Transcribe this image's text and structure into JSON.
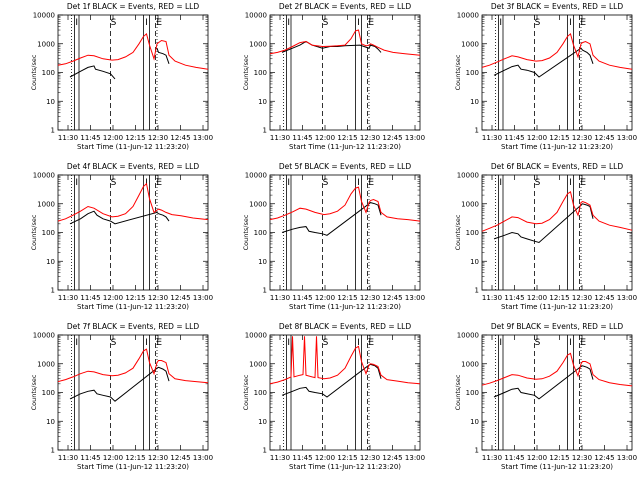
{
  "figure": {
    "xlabel": "Start Time (11-Jun-12 11:23:20)",
    "ylabel": "Counts/sec",
    "legend_text": "BLACK = Events, RED = LLD",
    "marker_labels": [
      "I",
      "S",
      "I",
      "E"
    ]
  },
  "chart_data": [
    {
      "type": "line",
      "title": "Det 1f BLACK = Events, RED = LLD",
      "xlabel": "Start Time (11-Jun-12 11:23:20)",
      "ylabel": "Counts/sec",
      "xticks": [
        "11:30",
        "11:45",
        "12:00",
        "12:15",
        "12:30",
        "12:45",
        "13:00"
      ],
      "yticks": [
        "1",
        "10",
        "100",
        "1000",
        "10000"
      ],
      "yscale": "log",
      "ylim": [
        1,
        10000
      ],
      "xlim_minutes": [
        0,
        100
      ],
      "series": [
        {
          "name": "Events",
          "color": "#000000",
          "x": [
            8,
            15,
            20,
            24,
            25,
            30,
            35,
            38,
            52,
            56,
            60,
            62,
            64,
            66,
            67,
            70,
            72,
            74
          ],
          "y": [
            70,
            110,
            150,
            170,
            130,
            110,
            90,
            60,
            null,
            null,
            null,
            null,
            null,
            700,
            500,
            450,
            400,
            200
          ]
        },
        {
          "name": "LLD",
          "color": "#ff0000",
          "x": [
            0,
            5,
            10,
            15,
            20,
            24,
            30,
            36,
            40,
            45,
            50,
            54,
            57,
            59,
            61,
            64,
            66,
            67,
            69,
            72,
            74,
            78,
            85,
            92,
            100
          ],
          "y": [
            180,
            200,
            250,
            320,
            400,
            380,
            300,
            270,
            280,
            350,
            500,
            1000,
            1800,
            2200,
            900,
            300,
            1000,
            1100,
            1300,
            1200,
            400,
            250,
            180,
            150,
            130
          ]
        }
      ]
    },
    {
      "type": "line",
      "title": "Det 2f BLACK = Events, RED = LLD",
      "xlabel": "Start Time (11-Jun-12 11:23:20)",
      "ylabel": "Counts/sec",
      "xticks": [
        "11:30",
        "11:45",
        "12:00",
        "12:15",
        "12:30",
        "12:45",
        "13:00"
      ],
      "yticks": [
        "1",
        "10",
        "100",
        "1000",
        "10000"
      ],
      "yscale": "log",
      "ylim": [
        1,
        10000
      ],
      "xlim_minutes": [
        0,
        100
      ],
      "series": [
        {
          "name": "Events",
          "color": "#000000",
          "x": [
            8,
            15,
            20,
            24,
            28,
            35,
            40,
            45,
            50,
            60,
            66,
            67,
            70,
            72,
            74
          ],
          "y": [
            500,
            700,
            900,
            1200,
            900,
            700,
            800,
            800,
            850,
            900,
            700,
            900,
            800,
            650,
            500
          ]
        },
        {
          "name": "LLD",
          "color": "#ff0000",
          "x": [
            0,
            5,
            10,
            15,
            20,
            24,
            28,
            35,
            40,
            45,
            50,
            54,
            57,
            59,
            61,
            64,
            66,
            67,
            69,
            72,
            76,
            82,
            90,
            100
          ],
          "y": [
            450,
            500,
            600,
            800,
            1100,
            1200,
            900,
            800,
            820,
            850,
            900,
            1500,
            2800,
            3000,
            1000,
            850,
            900,
            1000,
            900,
            750,
            600,
            500,
            450,
            400
          ]
        }
      ]
    },
    {
      "type": "line",
      "title": "Det 3f BLACK = Events, RED = LLD",
      "xlabel": "Start Time (11-Jun-12 11:23:20)",
      "ylabel": "Counts/sec",
      "xticks": [
        "11:30",
        "11:45",
        "12:00",
        "12:15",
        "12:30",
        "12:45",
        "13:00"
      ],
      "yticks": [
        "1",
        "10",
        "100",
        "1000",
        "10000"
      ],
      "yscale": "log",
      "ylim": [
        1,
        10000
      ],
      "xlim_minutes": [
        0,
        100
      ],
      "series": [
        {
          "name": "Events",
          "color": "#000000",
          "x": [
            8,
            15,
            20,
            24,
            26,
            30,
            35,
            38,
            66,
            67,
            70,
            72,
            74
          ],
          "y": [
            80,
            120,
            160,
            180,
            130,
            120,
            100,
            70,
            700,
            600,
            500,
            400,
            200
          ]
        },
        {
          "name": "LLD",
          "color": "#ff0000",
          "x": [
            0,
            5,
            10,
            15,
            20,
            24,
            30,
            36,
            40,
            45,
            50,
            54,
            57,
            59,
            61,
            64,
            66,
            67,
            69,
            72,
            74,
            78,
            85,
            92,
            100
          ],
          "y": [
            150,
            180,
            230,
            300,
            380,
            350,
            280,
            250,
            260,
            320,
            500,
            1000,
            1800,
            2200,
            900,
            350,
            1000,
            1100,
            1200,
            1000,
            400,
            250,
            180,
            150,
            130
          ]
        }
      ]
    },
    {
      "type": "line",
      "title": "Det 4f BLACK = Events, RED = LLD",
      "xlabel": "Start Time (11-Jun-12 11:23:20)",
      "ylabel": "Counts/sec",
      "xticks": [
        "11:30",
        "11:45",
        "12:00",
        "12:15",
        "12:30",
        "12:45",
        "13:00"
      ],
      "yticks": [
        "1",
        "10",
        "100",
        "1000",
        "10000"
      ],
      "yscale": "log",
      "ylim": [
        1,
        10000
      ],
      "xlim_minutes": [
        0,
        100
      ],
      "series": [
        {
          "name": "Events",
          "color": "#000000",
          "x": [
            8,
            15,
            20,
            24,
            26,
            30,
            35,
            38,
            66,
            67,
            70,
            72,
            74
          ],
          "y": [
            200,
            300,
            450,
            550,
            400,
            300,
            250,
            200,
            500,
            450,
            400,
            350,
            250
          ]
        },
        {
          "name": "LLD",
          "color": "#ff0000",
          "x": [
            0,
            5,
            10,
            15,
            20,
            24,
            30,
            36,
            40,
            45,
            50,
            54,
            57,
            59,
            61,
            64,
            66,
            67,
            69,
            72,
            76,
            82,
            90,
            100
          ],
          "y": [
            250,
            300,
            400,
            550,
            800,
            700,
            450,
            350,
            370,
            450,
            800,
            2000,
            4000,
            5000,
            1500,
            500,
            600,
            650,
            600,
            500,
            420,
            380,
            320,
            280
          ]
        }
      ]
    },
    {
      "type": "line",
      "title": "Det 5f BLACK = Events, RED = LLD",
      "xlabel": "Start Time (11-Jun-12 11:23:20)",
      "ylabel": "Counts/sec",
      "xticks": [
        "11:30",
        "11:45",
        "12:00",
        "12:15",
        "12:30",
        "12:45",
        "13:00"
      ],
      "yticks": [
        "1",
        "10",
        "100",
        "1000",
        "10000"
      ],
      "yscale": "log",
      "ylim": [
        1,
        10000
      ],
      "xlim_minutes": [
        0,
        100
      ],
      "series": [
        {
          "name": "Events",
          "color": "#000000",
          "x": [
            8,
            15,
            20,
            24,
            26,
            30,
            35,
            38,
            66,
            67,
            70,
            72,
            74
          ],
          "y": [
            100,
            130,
            150,
            160,
            110,
            100,
            90,
            80,
            1000,
            1100,
            1000,
            900,
            400
          ]
        },
        {
          "name": "LLD",
          "color": "#ff0000",
          "x": [
            0,
            5,
            10,
            15,
            20,
            24,
            30,
            36,
            40,
            45,
            50,
            54,
            57,
            59,
            61,
            64,
            66,
            67,
            69,
            72,
            74,
            78,
            85,
            92,
            100
          ],
          "y": [
            280,
            320,
            400,
            520,
            700,
            650,
            500,
            420,
            450,
            550,
            900,
            2200,
            3500,
            3800,
            1200,
            500,
            1100,
            1300,
            1400,
            1200,
            500,
            350,
            300,
            280,
            250
          ]
        }
      ]
    },
    {
      "type": "line",
      "title": "Det 6f BLACK = Events, RED = LLD",
      "xlabel": "Start Time (11-Jun-12 11:23:20)",
      "ylabel": "Counts/sec",
      "xticks": [
        "11:30",
        "11:45",
        "12:00",
        "12:15",
        "12:30",
        "12:45",
        "13:00"
      ],
      "yticks": [
        "1",
        "10",
        "100",
        "1000",
        "10000"
      ],
      "yscale": "log",
      "ylim": [
        1,
        10000
      ],
      "xlim_minutes": [
        0,
        100
      ],
      "series": [
        {
          "name": "Events",
          "color": "#000000",
          "x": [
            8,
            15,
            20,
            24,
            26,
            30,
            35,
            38,
            66,
            67,
            70,
            72,
            74
          ],
          "y": [
            60,
            80,
            100,
            90,
            70,
            60,
            50,
            45,
            900,
            1000,
            900,
            800,
            300
          ]
        },
        {
          "name": "LLD",
          "color": "#ff0000",
          "x": [
            0,
            5,
            10,
            15,
            20,
            24,
            30,
            36,
            40,
            45,
            50,
            54,
            57,
            59,
            61,
            64,
            66,
            67,
            69,
            72,
            74,
            78,
            85,
            92,
            100
          ],
          "y": [
            110,
            140,
            180,
            250,
            350,
            330,
            230,
            200,
            210,
            280,
            500,
            1200,
            2200,
            2600,
            900,
            400,
            1100,
            1200,
            1100,
            900,
            400,
            250,
            180,
            150,
            120
          ]
        }
      ]
    },
    {
      "type": "line",
      "title": "Det 7f BLACK = Events, RED = LLD",
      "xlabel": "Start Time (11-Jun-12 11:23:20)",
      "ylabel": "Counts/sec",
      "xticks": [
        "11:30",
        "11:45",
        "12:00",
        "12:15",
        "12:30",
        "12:45",
        "13:00"
      ],
      "yticks": [
        "1",
        "10",
        "100",
        "1000",
        "10000"
      ],
      "yscale": "log",
      "ylim": [
        1,
        10000
      ],
      "xlim_minutes": [
        0,
        100
      ],
      "series": [
        {
          "name": "Events",
          "color": "#000000",
          "x": [
            8,
            15,
            20,
            24,
            26,
            30,
            35,
            38,
            66,
            67,
            70,
            72,
            74
          ],
          "y": [
            60,
            90,
            110,
            120,
            90,
            80,
            70,
            50,
            700,
            750,
            650,
            550,
            250
          ]
        },
        {
          "name": "LLD",
          "color": "#ff0000",
          "x": [
            0,
            5,
            10,
            15,
            20,
            24,
            30,
            36,
            40,
            45,
            50,
            54,
            57,
            59,
            61,
            64,
            66,
            67,
            69,
            72,
            74,
            78,
            85,
            92,
            100
          ],
          "y": [
            240,
            280,
            350,
            450,
            550,
            520,
            420,
            380,
            400,
            480,
            700,
            1500,
            2800,
            3200,
            1100,
            450,
            1100,
            1300,
            1300,
            1100,
            450,
            300,
            260,
            240,
            220
          ]
        }
      ]
    },
    {
      "type": "line",
      "title": "Det 8f BLACK = Events, RED = LLD",
      "xlabel": "Start Time (11-Jun-12 11:23:20)",
      "ylabel": "Counts/sec",
      "xticks": [
        "11:30",
        "11:45",
        "12:00",
        "12:15",
        "12:30",
        "12:45",
        "13:00"
      ],
      "yticks": [
        "1",
        "10",
        "100",
        "1000",
        "10000"
      ],
      "yscale": "log",
      "ylim": [
        1,
        10000
      ],
      "xlim_minutes": [
        0,
        100
      ],
      "series": [
        {
          "name": "Events",
          "color": "#000000",
          "x": [
            8,
            15,
            20,
            24,
            26,
            30,
            35,
            38,
            66,
            67,
            70,
            72,
            74
          ],
          "y": [
            80,
            110,
            140,
            150,
            110,
            100,
            90,
            70,
            900,
            950,
            850,
            700,
            300
          ]
        },
        {
          "name": "LLD",
          "color": "#ff0000",
          "x": [
            0,
            5,
            10,
            14,
            15,
            16,
            20,
            22,
            23,
            24,
            28,
            30,
            31,
            32,
            36,
            40,
            45,
            50,
            54,
            57,
            59,
            61,
            64,
            66,
            67,
            69,
            72,
            74,
            78,
            85,
            92,
            100
          ],
          "y": [
            200,
            230,
            280,
            350,
            9000,
            350,
            400,
            420,
            9000,
            400,
            350,
            330,
            9000,
            330,
            300,
            320,
            400,
            700,
            1800,
            3500,
            4000,
            1200,
            450,
            900,
            1000,
            950,
            800,
            400,
            280,
            250,
            220,
            200
          ]
        }
      ]
    },
    {
      "type": "line",
      "title": "Det 9f BLACK = Events, RED = LLD",
      "xlabel": "Start Time (11-Jun-12 11:23:20)",
      "ylabel": "Counts/sec",
      "xticks": [
        "11:30",
        "11:45",
        "12:00",
        "12:15",
        "12:30",
        "12:45",
        "13:00"
      ],
      "yticks": [
        "1",
        "10",
        "100",
        "1000",
        "10000"
      ],
      "yscale": "log",
      "ylim": [
        1,
        10000
      ],
      "xlim_minutes": [
        0,
        100
      ],
      "series": [
        {
          "name": "Events",
          "color": "#000000",
          "x": [
            8,
            15,
            20,
            24,
            26,
            30,
            35,
            38,
            66,
            67,
            70,
            72,
            74
          ],
          "y": [
            70,
            100,
            130,
            140,
            100,
            90,
            80,
            60,
            800,
            850,
            750,
            650,
            280
          ]
        },
        {
          "name": "LLD",
          "color": "#ff0000",
          "x": [
            0,
            5,
            10,
            15,
            20,
            24,
            30,
            36,
            40,
            45,
            50,
            54,
            57,
            59,
            61,
            64,
            66,
            67,
            69,
            72,
            74,
            78,
            85,
            92,
            100
          ],
          "y": [
            180,
            210,
            260,
            330,
            420,
            400,
            320,
            290,
            300,
            370,
            550,
            1100,
            2000,
            2300,
            900,
            380,
            1000,
            1200,
            1200,
            1000,
            420,
            280,
            220,
            190,
            170
          ]
        }
      ]
    }
  ]
}
